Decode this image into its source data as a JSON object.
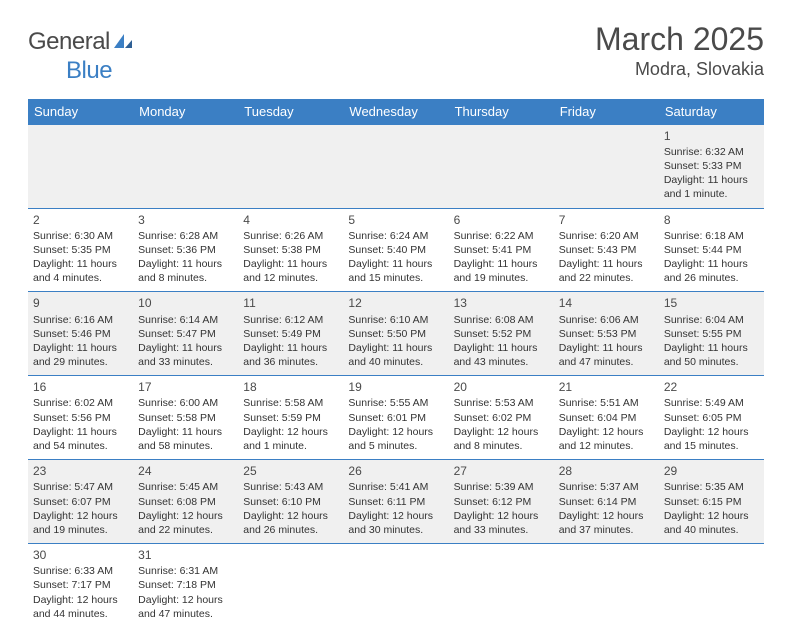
{
  "logo": {
    "text1": "General",
    "text2": "Blue"
  },
  "title": "March 2025",
  "location": "Modra, Slovakia",
  "colors": {
    "header_bg": "#3b7fc4",
    "header_fg": "#ffffff",
    "border": "#3b7fc4",
    "row_alt": "#f0f0f0",
    "text": "#333333",
    "title": "#4a4a4a"
  },
  "weekdays": [
    "Sunday",
    "Monday",
    "Tuesday",
    "Wednesday",
    "Thursday",
    "Friday",
    "Saturday"
  ],
  "weeks": [
    [
      null,
      null,
      null,
      null,
      null,
      null,
      {
        "n": "1",
        "sr": "Sunrise: 6:32 AM",
        "ss": "Sunset: 5:33 PM",
        "dl": "Daylight: 11 hours and 1 minute."
      }
    ],
    [
      {
        "n": "2",
        "sr": "Sunrise: 6:30 AM",
        "ss": "Sunset: 5:35 PM",
        "dl": "Daylight: 11 hours and 4 minutes."
      },
      {
        "n": "3",
        "sr": "Sunrise: 6:28 AM",
        "ss": "Sunset: 5:36 PM",
        "dl": "Daylight: 11 hours and 8 minutes."
      },
      {
        "n": "4",
        "sr": "Sunrise: 6:26 AM",
        "ss": "Sunset: 5:38 PM",
        "dl": "Daylight: 11 hours and 12 minutes."
      },
      {
        "n": "5",
        "sr": "Sunrise: 6:24 AM",
        "ss": "Sunset: 5:40 PM",
        "dl": "Daylight: 11 hours and 15 minutes."
      },
      {
        "n": "6",
        "sr": "Sunrise: 6:22 AM",
        "ss": "Sunset: 5:41 PM",
        "dl": "Daylight: 11 hours and 19 minutes."
      },
      {
        "n": "7",
        "sr": "Sunrise: 6:20 AM",
        "ss": "Sunset: 5:43 PM",
        "dl": "Daylight: 11 hours and 22 minutes."
      },
      {
        "n": "8",
        "sr": "Sunrise: 6:18 AM",
        "ss": "Sunset: 5:44 PM",
        "dl": "Daylight: 11 hours and 26 minutes."
      }
    ],
    [
      {
        "n": "9",
        "sr": "Sunrise: 6:16 AM",
        "ss": "Sunset: 5:46 PM",
        "dl": "Daylight: 11 hours and 29 minutes."
      },
      {
        "n": "10",
        "sr": "Sunrise: 6:14 AM",
        "ss": "Sunset: 5:47 PM",
        "dl": "Daylight: 11 hours and 33 minutes."
      },
      {
        "n": "11",
        "sr": "Sunrise: 6:12 AM",
        "ss": "Sunset: 5:49 PM",
        "dl": "Daylight: 11 hours and 36 minutes."
      },
      {
        "n": "12",
        "sr": "Sunrise: 6:10 AM",
        "ss": "Sunset: 5:50 PM",
        "dl": "Daylight: 11 hours and 40 minutes."
      },
      {
        "n": "13",
        "sr": "Sunrise: 6:08 AM",
        "ss": "Sunset: 5:52 PM",
        "dl": "Daylight: 11 hours and 43 minutes."
      },
      {
        "n": "14",
        "sr": "Sunrise: 6:06 AM",
        "ss": "Sunset: 5:53 PM",
        "dl": "Daylight: 11 hours and 47 minutes."
      },
      {
        "n": "15",
        "sr": "Sunrise: 6:04 AM",
        "ss": "Sunset: 5:55 PM",
        "dl": "Daylight: 11 hours and 50 minutes."
      }
    ],
    [
      {
        "n": "16",
        "sr": "Sunrise: 6:02 AM",
        "ss": "Sunset: 5:56 PM",
        "dl": "Daylight: 11 hours and 54 minutes."
      },
      {
        "n": "17",
        "sr": "Sunrise: 6:00 AM",
        "ss": "Sunset: 5:58 PM",
        "dl": "Daylight: 11 hours and 58 minutes."
      },
      {
        "n": "18",
        "sr": "Sunrise: 5:58 AM",
        "ss": "Sunset: 5:59 PM",
        "dl": "Daylight: 12 hours and 1 minute."
      },
      {
        "n": "19",
        "sr": "Sunrise: 5:55 AM",
        "ss": "Sunset: 6:01 PM",
        "dl": "Daylight: 12 hours and 5 minutes."
      },
      {
        "n": "20",
        "sr": "Sunrise: 5:53 AM",
        "ss": "Sunset: 6:02 PM",
        "dl": "Daylight: 12 hours and 8 minutes."
      },
      {
        "n": "21",
        "sr": "Sunrise: 5:51 AM",
        "ss": "Sunset: 6:04 PM",
        "dl": "Daylight: 12 hours and 12 minutes."
      },
      {
        "n": "22",
        "sr": "Sunrise: 5:49 AM",
        "ss": "Sunset: 6:05 PM",
        "dl": "Daylight: 12 hours and 15 minutes."
      }
    ],
    [
      {
        "n": "23",
        "sr": "Sunrise: 5:47 AM",
        "ss": "Sunset: 6:07 PM",
        "dl": "Daylight: 12 hours and 19 minutes."
      },
      {
        "n": "24",
        "sr": "Sunrise: 5:45 AM",
        "ss": "Sunset: 6:08 PM",
        "dl": "Daylight: 12 hours and 22 minutes."
      },
      {
        "n": "25",
        "sr": "Sunrise: 5:43 AM",
        "ss": "Sunset: 6:10 PM",
        "dl": "Daylight: 12 hours and 26 minutes."
      },
      {
        "n": "26",
        "sr": "Sunrise: 5:41 AM",
        "ss": "Sunset: 6:11 PM",
        "dl": "Daylight: 12 hours and 30 minutes."
      },
      {
        "n": "27",
        "sr": "Sunrise: 5:39 AM",
        "ss": "Sunset: 6:12 PM",
        "dl": "Daylight: 12 hours and 33 minutes."
      },
      {
        "n": "28",
        "sr": "Sunrise: 5:37 AM",
        "ss": "Sunset: 6:14 PM",
        "dl": "Daylight: 12 hours and 37 minutes."
      },
      {
        "n": "29",
        "sr": "Sunrise: 5:35 AM",
        "ss": "Sunset: 6:15 PM",
        "dl": "Daylight: 12 hours and 40 minutes."
      }
    ],
    [
      {
        "n": "30",
        "sr": "Sunrise: 6:33 AM",
        "ss": "Sunset: 7:17 PM",
        "dl": "Daylight: 12 hours and 44 minutes."
      },
      {
        "n": "31",
        "sr": "Sunrise: 6:31 AM",
        "ss": "Sunset: 7:18 PM",
        "dl": "Daylight: 12 hours and 47 minutes."
      },
      null,
      null,
      null,
      null,
      null
    ]
  ]
}
